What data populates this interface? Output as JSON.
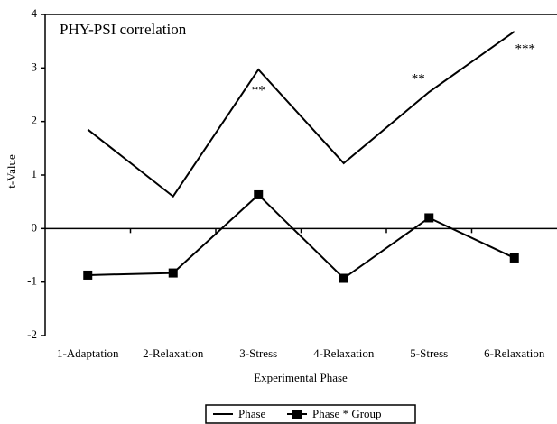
{
  "chart_data": {
    "type": "line",
    "title": "PHY-PSI correlation",
    "x_label": "Experimental Phase",
    "y_label": "t-Value",
    "categories": [
      "1-Adaptation",
      "2-Relaxation",
      "3-Stress",
      "4-Relaxation",
      "5-Stress",
      "6-Relaxation"
    ],
    "series": [
      {
        "name": "Phase",
        "color": "#000000",
        "marker": "none",
        "values": [
          1.85,
          0.6,
          2.97,
          1.22,
          2.55,
          3.68
        ]
      },
      {
        "name": "Phase * Group",
        "color": "#000000",
        "marker": "square",
        "values": [
          -0.87,
          -0.83,
          0.63,
          -0.93,
          0.2,
          -0.55
        ]
      }
    ],
    "annotations": [
      "**",
      "**",
      "***"
    ],
    "ylim": [
      -2,
      4
    ],
    "yticks": [
      -2,
      -1,
      0,
      1,
      2,
      3,
      4
    ],
    "grid": false,
    "legend": "bottom"
  }
}
